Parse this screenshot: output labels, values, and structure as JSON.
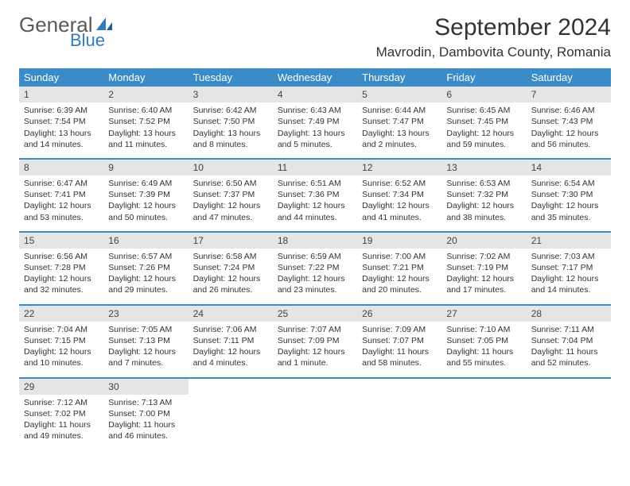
{
  "logo": {
    "word1": "General",
    "word2": "Blue"
  },
  "title": "September 2024",
  "location": "Mavrodin, Dambovita County, Romania",
  "colors": {
    "header_bg": "#3b8bc8",
    "header_text": "#ffffff",
    "daynum_bg": "#e5e5e5",
    "row_border": "#3b8bc8",
    "logo_gray": "#5a5a5a",
    "logo_blue": "#2f7bbf"
  },
  "weekdays": [
    "Sunday",
    "Monday",
    "Tuesday",
    "Wednesday",
    "Thursday",
    "Friday",
    "Saturday"
  ],
  "weeks": [
    [
      {
        "n": "1",
        "sr": "Sunrise: 6:39 AM",
        "ss": "Sunset: 7:54 PM",
        "d1": "Daylight: 13 hours",
        "d2": "and 14 minutes."
      },
      {
        "n": "2",
        "sr": "Sunrise: 6:40 AM",
        "ss": "Sunset: 7:52 PM",
        "d1": "Daylight: 13 hours",
        "d2": "and 11 minutes."
      },
      {
        "n": "3",
        "sr": "Sunrise: 6:42 AM",
        "ss": "Sunset: 7:50 PM",
        "d1": "Daylight: 13 hours",
        "d2": "and 8 minutes."
      },
      {
        "n": "4",
        "sr": "Sunrise: 6:43 AM",
        "ss": "Sunset: 7:49 PM",
        "d1": "Daylight: 13 hours",
        "d2": "and 5 minutes."
      },
      {
        "n": "5",
        "sr": "Sunrise: 6:44 AM",
        "ss": "Sunset: 7:47 PM",
        "d1": "Daylight: 13 hours",
        "d2": "and 2 minutes."
      },
      {
        "n": "6",
        "sr": "Sunrise: 6:45 AM",
        "ss": "Sunset: 7:45 PM",
        "d1": "Daylight: 12 hours",
        "d2": "and 59 minutes."
      },
      {
        "n": "7",
        "sr": "Sunrise: 6:46 AM",
        "ss": "Sunset: 7:43 PM",
        "d1": "Daylight: 12 hours",
        "d2": "and 56 minutes."
      }
    ],
    [
      {
        "n": "8",
        "sr": "Sunrise: 6:47 AM",
        "ss": "Sunset: 7:41 PM",
        "d1": "Daylight: 12 hours",
        "d2": "and 53 minutes."
      },
      {
        "n": "9",
        "sr": "Sunrise: 6:49 AM",
        "ss": "Sunset: 7:39 PM",
        "d1": "Daylight: 12 hours",
        "d2": "and 50 minutes."
      },
      {
        "n": "10",
        "sr": "Sunrise: 6:50 AM",
        "ss": "Sunset: 7:37 PM",
        "d1": "Daylight: 12 hours",
        "d2": "and 47 minutes."
      },
      {
        "n": "11",
        "sr": "Sunrise: 6:51 AM",
        "ss": "Sunset: 7:36 PM",
        "d1": "Daylight: 12 hours",
        "d2": "and 44 minutes."
      },
      {
        "n": "12",
        "sr": "Sunrise: 6:52 AM",
        "ss": "Sunset: 7:34 PM",
        "d1": "Daylight: 12 hours",
        "d2": "and 41 minutes."
      },
      {
        "n": "13",
        "sr": "Sunrise: 6:53 AM",
        "ss": "Sunset: 7:32 PM",
        "d1": "Daylight: 12 hours",
        "d2": "and 38 minutes."
      },
      {
        "n": "14",
        "sr": "Sunrise: 6:54 AM",
        "ss": "Sunset: 7:30 PM",
        "d1": "Daylight: 12 hours",
        "d2": "and 35 minutes."
      }
    ],
    [
      {
        "n": "15",
        "sr": "Sunrise: 6:56 AM",
        "ss": "Sunset: 7:28 PM",
        "d1": "Daylight: 12 hours",
        "d2": "and 32 minutes."
      },
      {
        "n": "16",
        "sr": "Sunrise: 6:57 AM",
        "ss": "Sunset: 7:26 PM",
        "d1": "Daylight: 12 hours",
        "d2": "and 29 minutes."
      },
      {
        "n": "17",
        "sr": "Sunrise: 6:58 AM",
        "ss": "Sunset: 7:24 PM",
        "d1": "Daylight: 12 hours",
        "d2": "and 26 minutes."
      },
      {
        "n": "18",
        "sr": "Sunrise: 6:59 AM",
        "ss": "Sunset: 7:22 PM",
        "d1": "Daylight: 12 hours",
        "d2": "and 23 minutes."
      },
      {
        "n": "19",
        "sr": "Sunrise: 7:00 AM",
        "ss": "Sunset: 7:21 PM",
        "d1": "Daylight: 12 hours",
        "d2": "and 20 minutes."
      },
      {
        "n": "20",
        "sr": "Sunrise: 7:02 AM",
        "ss": "Sunset: 7:19 PM",
        "d1": "Daylight: 12 hours",
        "d2": "and 17 minutes."
      },
      {
        "n": "21",
        "sr": "Sunrise: 7:03 AM",
        "ss": "Sunset: 7:17 PM",
        "d1": "Daylight: 12 hours",
        "d2": "and 14 minutes."
      }
    ],
    [
      {
        "n": "22",
        "sr": "Sunrise: 7:04 AM",
        "ss": "Sunset: 7:15 PM",
        "d1": "Daylight: 12 hours",
        "d2": "and 10 minutes."
      },
      {
        "n": "23",
        "sr": "Sunrise: 7:05 AM",
        "ss": "Sunset: 7:13 PM",
        "d1": "Daylight: 12 hours",
        "d2": "and 7 minutes."
      },
      {
        "n": "24",
        "sr": "Sunrise: 7:06 AM",
        "ss": "Sunset: 7:11 PM",
        "d1": "Daylight: 12 hours",
        "d2": "and 4 minutes."
      },
      {
        "n": "25",
        "sr": "Sunrise: 7:07 AM",
        "ss": "Sunset: 7:09 PM",
        "d1": "Daylight: 12 hours",
        "d2": "and 1 minute."
      },
      {
        "n": "26",
        "sr": "Sunrise: 7:09 AM",
        "ss": "Sunset: 7:07 PM",
        "d1": "Daylight: 11 hours",
        "d2": "and 58 minutes."
      },
      {
        "n": "27",
        "sr": "Sunrise: 7:10 AM",
        "ss": "Sunset: 7:05 PM",
        "d1": "Daylight: 11 hours",
        "d2": "and 55 minutes."
      },
      {
        "n": "28",
        "sr": "Sunrise: 7:11 AM",
        "ss": "Sunset: 7:04 PM",
        "d1": "Daylight: 11 hours",
        "d2": "and 52 minutes."
      }
    ],
    [
      {
        "n": "29",
        "sr": "Sunrise: 7:12 AM",
        "ss": "Sunset: 7:02 PM",
        "d1": "Daylight: 11 hours",
        "d2": "and 49 minutes."
      },
      {
        "n": "30",
        "sr": "Sunrise: 7:13 AM",
        "ss": "Sunset: 7:00 PM",
        "d1": "Daylight: 11 hours",
        "d2": "and 46 minutes."
      },
      null,
      null,
      null,
      null,
      null
    ]
  ]
}
